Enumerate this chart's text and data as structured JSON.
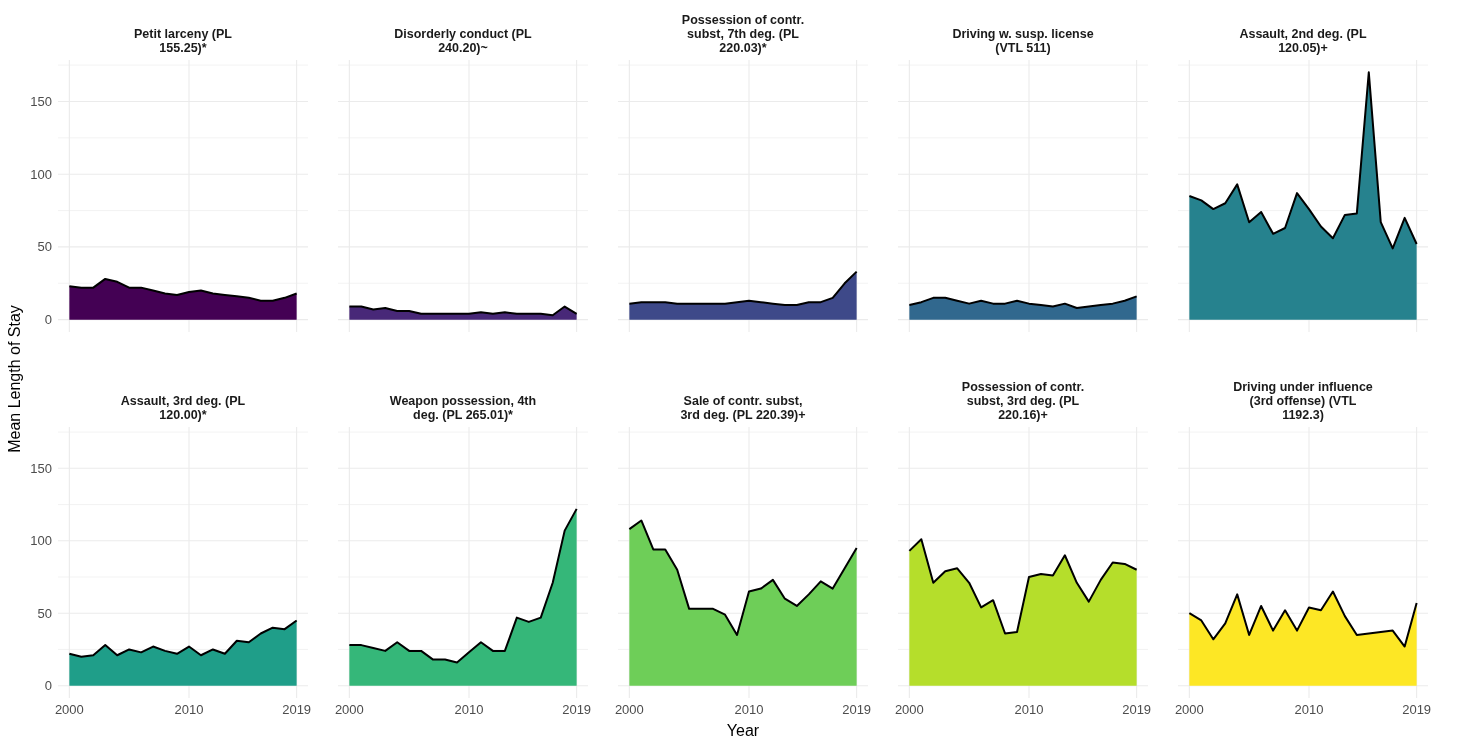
{
  "chart_data": [
    {
      "type": "area",
      "title": "Petit larceny (PL\n155.25)*",
      "ylabel": "Mean Length of Stay",
      "x": [
        2000,
        2001,
        2002,
        2003,
        2004,
        2005,
        2006,
        2007,
        2008,
        2009,
        2010,
        2011,
        2012,
        2013,
        2014,
        2015,
        2016,
        2017,
        2018,
        2019
      ],
      "values": [
        23,
        22,
        22,
        28,
        26,
        22,
        22,
        20,
        18,
        17,
        19,
        20,
        18,
        17,
        16,
        15,
        13,
        13,
        15,
        18
      ],
      "color": "#440154",
      "xlim": [
        1999.05,
        2019.95
      ],
      "ylim": [
        -8.5,
        178.5
      ],
      "xticks": [
        2000,
        2010,
        2019
      ],
      "yticks": [
        0,
        {
          "value": 25,
          "label": null
        },
        50,
        {
          "value": 75,
          "label": null
        },
        100,
        {
          "value": 125,
          "label": null
        },
        150,
        {
          "value": 175,
          "label": null
        }
      ],
      "grid": true,
      "tick_labels": "y"
    },
    {
      "type": "area",
      "title": "Disorderly conduct (PL\n240.20)~",
      "x": [
        2000,
        2001,
        2002,
        2003,
        2004,
        2005,
        2006,
        2007,
        2008,
        2009,
        2010,
        2011,
        2012,
        2013,
        2014,
        2015,
        2016,
        2017,
        2018,
        2019
      ],
      "values": [
        9,
        9,
        7,
        8,
        6,
        6,
        4,
        4,
        4,
        4,
        4,
        5,
        4,
        5,
        4,
        4,
        4,
        3,
        9,
        4
      ],
      "color": "#482878",
      "xlim": [
        1999.05,
        2019.95
      ],
      "ylim": [
        -8.5,
        178.5
      ],
      "xticks": [
        2000,
        2010,
        2019
      ],
      "yticks": [
        0,
        {
          "value": 25,
          "label": null
        },
        50,
        {
          "value": 75,
          "label": null
        },
        100,
        {
          "value": 125,
          "label": null
        },
        150,
        {
          "value": 175,
          "label": null
        }
      ],
      "grid": true,
      "tick_labels": false
    },
    {
      "type": "area",
      "title": "Possession of contr.\nsubst, 7th deg. (PL\n220.03)*",
      "x": [
        2000,
        2001,
        2002,
        2003,
        2004,
        2005,
        2006,
        2007,
        2008,
        2009,
        2010,
        2011,
        2012,
        2013,
        2014,
        2015,
        2016,
        2017,
        2018,
        2019
      ],
      "values": [
        11,
        12,
        12,
        12,
        11,
        11,
        11,
        11,
        11,
        12,
        13,
        12,
        11,
        10,
        10,
        12,
        12,
        15,
        25,
        33
      ],
      "color": "#3e4989",
      "xlim": [
        1999.05,
        2019.95
      ],
      "ylim": [
        -8.5,
        178.5
      ],
      "xticks": [
        2000,
        2010,
        2019
      ],
      "yticks": [
        0,
        {
          "value": 25,
          "label": null
        },
        50,
        {
          "value": 75,
          "label": null
        },
        100,
        {
          "value": 125,
          "label": null
        },
        150,
        {
          "value": 175,
          "label": null
        }
      ],
      "grid": true,
      "tick_labels": false
    },
    {
      "type": "area",
      "title": "Driving w. susp. license\n(VTL 511)",
      "x": [
        2000,
        2001,
        2002,
        2003,
        2004,
        2005,
        2006,
        2007,
        2008,
        2009,
        2010,
        2011,
        2012,
        2013,
        2014,
        2015,
        2016,
        2017,
        2018,
        2019
      ],
      "values": [
        10,
        12,
        15,
        15,
        13,
        11,
        13,
        11,
        11,
        13,
        11,
        10,
        9,
        11,
        8,
        9,
        10,
        11,
        13,
        16
      ],
      "color": "#31688e",
      "xlim": [
        1999.05,
        2019.95
      ],
      "ylim": [
        -8.5,
        178.5
      ],
      "xticks": [
        2000,
        2010,
        2019
      ],
      "yticks": [
        0,
        {
          "value": 25,
          "label": null
        },
        50,
        {
          "value": 75,
          "label": null
        },
        100,
        {
          "value": 125,
          "label": null
        },
        150,
        {
          "value": 175,
          "label": null
        }
      ],
      "grid": true,
      "tick_labels": false
    },
    {
      "type": "area",
      "title": "Assault, 2nd deg. (PL\n120.05)+",
      "x": [
        2000,
        2001,
        2002,
        2003,
        2004,
        2005,
        2006,
        2007,
        2008,
        2009,
        2010,
        2011,
        2012,
        2013,
        2014,
        2015,
        2016,
        2017,
        2018,
        2019
      ],
      "values": [
        85,
        82,
        76,
        80,
        93,
        67,
        74,
        59,
        63,
        87,
        76,
        64,
        56,
        72,
        73,
        170,
        67,
        49,
        70,
        52
      ],
      "color": "#26828e",
      "xlim": [
        1999.05,
        2019.95
      ],
      "ylim": [
        -8.5,
        178.5
      ],
      "xticks": [
        2000,
        2010,
        2019
      ],
      "yticks": [
        0,
        {
          "value": 25,
          "label": null
        },
        50,
        {
          "value": 75,
          "label": null
        },
        100,
        {
          "value": 125,
          "label": null
        },
        150,
        {
          "value": 175,
          "label": null
        }
      ],
      "grid": true,
      "tick_labels": false
    },
    {
      "type": "area",
      "title": "Assault, 3rd deg. (PL\n120.00)*",
      "x": [
        2000,
        2001,
        2002,
        2003,
        2004,
        2005,
        2006,
        2007,
        2008,
        2009,
        2010,
        2011,
        2012,
        2013,
        2014,
        2015,
        2016,
        2017,
        2018,
        2019
      ],
      "values": [
        22,
        20,
        21,
        28,
        21,
        25,
        23,
        27,
        24,
        22,
        27,
        21,
        25,
        22,
        31,
        30,
        36,
        40,
        39,
        45
      ],
      "color": "#1f9e89",
      "xlim": [
        1999.05,
        2019.95
      ],
      "ylim": [
        -8.5,
        178.5
      ],
      "xticks": [
        2000,
        2010,
        2019
      ],
      "yticks": [
        0,
        {
          "value": 25,
          "label": null
        },
        50,
        {
          "value": 75,
          "label": null
        },
        100,
        {
          "value": 125,
          "label": null
        },
        150,
        {
          "value": 175,
          "label": null
        }
      ],
      "grid": true
    },
    {
      "type": "area",
      "title": "Weapon possession, 4th\ndeg. (PL 265.01)*",
      "x": [
        2000,
        2001,
        2002,
        2003,
        2004,
        2005,
        2006,
        2007,
        2008,
        2009,
        2010,
        2011,
        2012,
        2013,
        2014,
        2015,
        2016,
        2017,
        2018,
        2019
      ],
      "values": [
        28,
        28,
        26,
        24,
        30,
        24,
        24,
        18,
        18,
        16,
        23,
        30,
        24,
        24,
        47,
        44,
        47,
        71,
        107,
        122
      ],
      "color": "#35b779",
      "xlim": [
        1999.05,
        2019.95
      ],
      "ylim": [
        -8.5,
        178.5
      ],
      "xticks": [
        2000,
        2010,
        2019
      ],
      "yticks": [
        0,
        {
          "value": 25,
          "label": null
        },
        50,
        {
          "value": 75,
          "label": null
        },
        100,
        {
          "value": 125,
          "label": null
        },
        150,
        {
          "value": 175,
          "label": null
        }
      ],
      "grid": true,
      "tick_labels": "x"
    },
    {
      "type": "area",
      "title": "Sale of contr. subst,\n3rd deg. (PL 220.39)+",
      "xlabel": "Year",
      "x": [
        2000,
        2001,
        2002,
        2003,
        2004,
        2005,
        2006,
        2007,
        2008,
        2009,
        2010,
        2011,
        2012,
        2013,
        2014,
        2015,
        2016,
        2017,
        2018,
        2019
      ],
      "values": [
        108,
        114,
        94,
        94,
        80,
        53,
        53,
        53,
        49,
        35,
        65,
        67,
        73,
        60,
        55,
        63,
        72,
        67,
        81,
        95
      ],
      "color": "#6ece58",
      "xlim": [
        1999.05,
        2019.95
      ],
      "ylim": [
        -8.5,
        178.5
      ],
      "xticks": [
        2000,
        2010,
        2019
      ],
      "yticks": [
        0,
        {
          "value": 25,
          "label": null
        },
        50,
        {
          "value": 75,
          "label": null
        },
        100,
        {
          "value": 125,
          "label": null
        },
        150,
        {
          "value": 175,
          "label": null
        }
      ],
      "grid": true,
      "tick_labels": "x"
    },
    {
      "type": "area",
      "title": "Possession of contr.\nsubst, 3rd deg. (PL\n220.16)+",
      "x": [
        2000,
        2001,
        2002,
        2003,
        2004,
        2005,
        2006,
        2007,
        2008,
        2009,
        2010,
        2011,
        2012,
        2013,
        2014,
        2015,
        2016,
        2017,
        2018,
        2019
      ],
      "values": [
        93,
        101,
        71,
        79,
        81,
        71,
        54,
        59,
        36,
        37,
        75,
        77,
        76,
        90,
        71,
        58,
        73,
        85,
        84,
        80
      ],
      "color": "#b5de2b",
      "xlim": [
        1999.05,
        2019.95
      ],
      "ylim": [
        -8.5,
        178.5
      ],
      "xticks": [
        2000,
        2010,
        2019
      ],
      "yticks": [
        0,
        {
          "value": 25,
          "label": null
        },
        50,
        {
          "value": 75,
          "label": null
        },
        100,
        {
          "value": 125,
          "label": null
        },
        150,
        {
          "value": 175,
          "label": null
        }
      ],
      "grid": true,
      "tick_labels": "x"
    },
    {
      "type": "area",
      "title": "Driving under influence\n(3rd offense) (VTL\n1192.3)",
      "x": [
        2000,
        2001,
        2002,
        2003,
        2004,
        2005,
        2006,
        2007,
        2008,
        2009,
        2010,
        2011,
        2012,
        2013,
        2014,
        2015,
        2016,
        2017,
        2018,
        2019
      ],
      "values": [
        50,
        45,
        32,
        43,
        63,
        35,
        55,
        38,
        52,
        38,
        54,
        52,
        65,
        48,
        35,
        36,
        37,
        38,
        27,
        57
      ],
      "color": "#fde725",
      "xlim": [
        1999.05,
        2019.95
      ],
      "ylim": [
        -8.5,
        178.5
      ],
      "xticks": [
        2000,
        2010,
        2019
      ],
      "yticks": [
        0,
        {
          "value": 25,
          "label": null
        },
        50,
        {
          "value": 75,
          "label": null
        },
        100,
        {
          "value": 125,
          "label": null
        },
        150,
        {
          "value": 175,
          "label": null
        }
      ],
      "grid": true,
      "tick_labels": "x"
    }
  ]
}
